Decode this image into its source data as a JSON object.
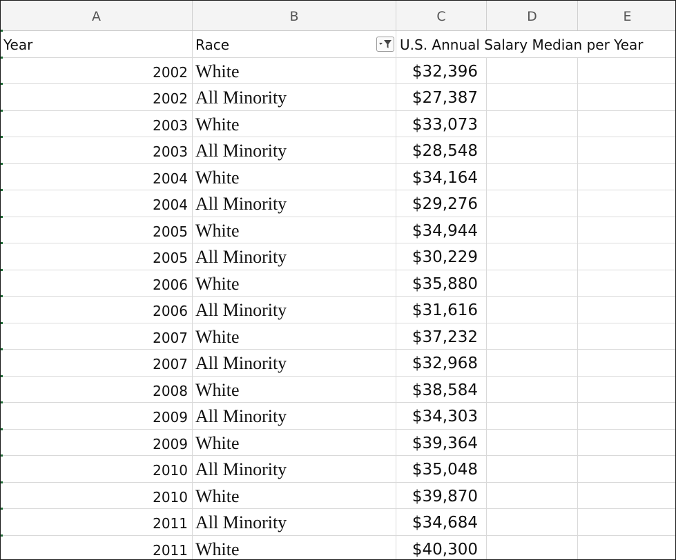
{
  "column_letters": [
    "A",
    "B",
    "C",
    "D",
    "E"
  ],
  "headers": {
    "year": "Year",
    "race": "Race",
    "salary": "U.S. Annual Salary Median per Year"
  },
  "rows": [
    {
      "year": "2002",
      "race": "White",
      "salary": "$32,396"
    },
    {
      "year": "2002",
      "race": "All Minority",
      "salary": "$27,387"
    },
    {
      "year": "2003",
      "race": "White",
      "salary": "$33,073"
    },
    {
      "year": "2003",
      "race": "All Minority",
      "salary": "$28,548"
    },
    {
      "year": "2004",
      "race": "White",
      "salary": "$34,164"
    },
    {
      "year": "2004",
      "race": "All Minority",
      "salary": "$29,276"
    },
    {
      "year": "2005",
      "race": "White",
      "salary": "$34,944"
    },
    {
      "year": "2005",
      "race": "All Minority",
      "salary": "$30,229"
    },
    {
      "year": "2006",
      "race": "White",
      "salary": "$35,880"
    },
    {
      "year": "2006",
      "race": "All Minority",
      "salary": "$31,616"
    },
    {
      "year": "2007",
      "race": "White",
      "salary": "$37,232"
    },
    {
      "year": "2007",
      "race": "All Minority",
      "salary": "$32,968"
    },
    {
      "year": "2008",
      "race": "White",
      "salary": "$38,584"
    },
    {
      "year": "2009",
      "race": "All Minority",
      "salary": "$34,303"
    },
    {
      "year": "2009",
      "race": "White",
      "salary": "$39,364"
    },
    {
      "year": "2010",
      "race": "All Minority",
      "salary": "$35,048"
    },
    {
      "year": "2010",
      "race": "White",
      "salary": "$39,870"
    },
    {
      "year": "2011",
      "race": "All Minority",
      "salary": "$34,684"
    },
    {
      "year": "2011",
      "race": "White",
      "salary": "$40,300"
    }
  ],
  "icons": {
    "filter": "filter-dropdown-icon"
  },
  "colors": {
    "row_indicator": "#1f6b35"
  }
}
